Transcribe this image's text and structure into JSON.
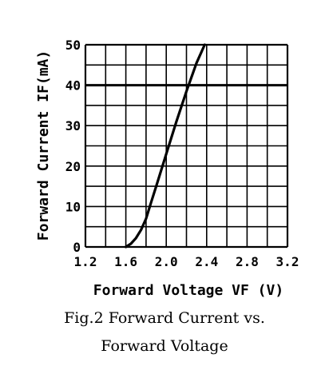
{
  "chart_data": {
    "type": "line",
    "x_ticks": [
      "1.2",
      "1.6",
      "2.0",
      "2.4",
      "2.8",
      "3.2"
    ],
    "y_ticks": [
      "0",
      "10",
      "20",
      "30",
      "40",
      "50"
    ],
    "xlim": [
      1.2,
      3.2
    ],
    "ylim": [
      0,
      50
    ],
    "grid": true,
    "highlight_gridline_y": 40,
    "series": [
      {
        "x": [
          1.6,
          1.65,
          1.7,
          1.75,
          1.8,
          1.85,
          1.9,
          2.0,
          2.1,
          2.2,
          2.3,
          2.38
        ],
        "values": [
          0,
          0.8,
          2.2,
          4.2,
          7,
          11,
          15,
          23,
          31,
          38.5,
          45.5,
          50
        ]
      }
    ],
    "ylabel": "Forward Current IF(mA)",
    "xlabel": "Forward Voltage VF  (V)"
  },
  "caption": {
    "line1": "Fig.2 Forward Current vs.",
    "line2": "Forward Voltage"
  }
}
